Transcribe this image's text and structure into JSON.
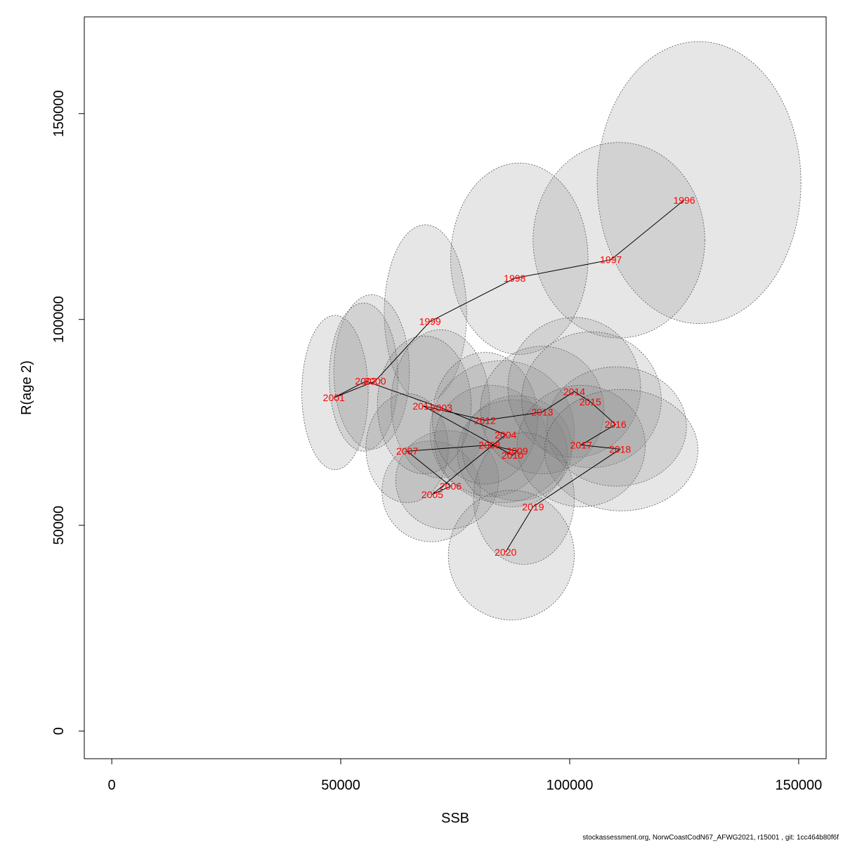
{
  "footer": "stockassessment.org, NorwCoastCodN67_AFWG2021, r15001 , git: 1cc464b80f6f",
  "chart_data": {
    "type": "scatter",
    "xlabel": "SSB",
    "ylabel": "R(age 2)",
    "xlim": [
      -6000,
      156000
    ],
    "ylim": [
      -6700,
      173500
    ],
    "x_ticks": [
      0,
      50000,
      100000,
      150000
    ],
    "y_ticks": [
      0,
      50000,
      100000,
      150000
    ],
    "grid": false,
    "colors": {
      "label": "#ff0000",
      "ellipse_fill": "#808080",
      "ellipse_stroke": "#555555",
      "line": "#000000"
    },
    "points": [
      {
        "year": "1996",
        "ssb": 125000,
        "rec": 129000,
        "ell": {
          "x": [
            106000,
            150500
          ],
          "y": [
            99000,
            167500
          ]
        }
      },
      {
        "year": "1997",
        "ssb": 109000,
        "rec": 114500,
        "ell": {
          "x": [
            92000,
            129500
          ],
          "y": [
            95500,
            143000
          ]
        }
      },
      {
        "year": "1998",
        "ssb": 88000,
        "rec": 110000,
        "ell": {
          "x": [
            74000,
            104000
          ],
          "y": [
            91500,
            138000
          ]
        }
      },
      {
        "year": "1999",
        "ssb": 69500,
        "rec": 99500,
        "ell": {
          "x": [
            59500,
            77500
          ],
          "y": [
            80000,
            123000
          ]
        }
      },
      {
        "year": "2000",
        "ssb": 57500,
        "rec": 85000,
        "ell": {
          "x": [
            48500,
            65000
          ],
          "y": [
            68500,
            106000
          ]
        }
      },
      {
        "year": "2001",
        "ssb": 48500,
        "rec": 81000,
        "ell": {
          "x": [
            41500,
            56000
          ],
          "y": [
            63500,
            101000
          ]
        }
      },
      {
        "year": "2002",
        "ssb": 55500,
        "rec": 85000,
        "ell": {
          "x": [
            47500,
            62500
          ],
          "y": [
            68000,
            104000
          ]
        }
      },
      {
        "year": "2003",
        "ssb": 72000,
        "rec": 78500,
        "ell": {
          "x": [
            61000,
            82500
          ],
          "y": [
            61500,
            97500
          ]
        }
      },
      {
        "year": "2004",
        "ssb": 86000,
        "rec": 72000,
        "ell": {
          "x": [
            69500,
            101000
          ],
          "y": [
            55500,
            90000
          ]
        }
      },
      {
        "year": "2005",
        "ssb": 70000,
        "rec": 57500,
        "ell": {
          "x": [
            59000,
            80500
          ],
          "y": [
            46000,
            70500
          ]
        }
      },
      {
        "year": "2006",
        "ssb": 74000,
        "rec": 59500,
        "ell": {
          "x": [
            62000,
            84500
          ],
          "y": [
            49000,
            73000
          ]
        }
      },
      {
        "year": "2007",
        "ssb": 64500,
        "rec": 68000,
        "ell": {
          "x": [
            55500,
            73500
          ],
          "y": [
            55500,
            82000
          ]
        }
      },
      {
        "year": "2008",
        "ssb": 82500,
        "rec": 69500,
        "ell": {
          "x": [
            70500,
            95000
          ],
          "y": [
            57000,
            84000
          ]
        }
      },
      {
        "year": "2009",
        "ssb": 88500,
        "rec": 68000,
        "ell": {
          "x": [
            76500,
            100500
          ],
          "y": [
            56000,
            81500
          ]
        }
      },
      {
        "year": "2010",
        "ssb": 87500,
        "rec": 67000,
        "ell": {
          "x": [
            75500,
            99500
          ],
          "y": [
            54500,
            80500
          ]
        }
      },
      {
        "year": "2011",
        "ssb": 68000,
        "rec": 79000,
        "ell": {
          "x": [
            58000,
            78500
          ],
          "y": [
            62500,
            96000
          ]
        }
      },
      {
        "year": "2012",
        "ssb": 81500,
        "rec": 75500,
        "ell": {
          "x": [
            70000,
            93000
          ],
          "y": [
            60000,
            92000
          ]
        }
      },
      {
        "year": "2013",
        "ssb": 94000,
        "rec": 77500,
        "ell": {
          "x": [
            80500,
            107500
          ],
          "y": [
            62500,
            93500
          ]
        }
      },
      {
        "year": "2014",
        "ssb": 101000,
        "rec": 82500,
        "ell": {
          "x": [
            86500,
            115500
          ],
          "y": [
            66500,
            100500
          ]
        }
      },
      {
        "year": "2015",
        "ssb": 104500,
        "rec": 80000,
        "ell": {
          "x": [
            89500,
            120000
          ],
          "y": [
            64000,
            97000
          ]
        }
      },
      {
        "year": "2016",
        "ssb": 110000,
        "rec": 74500,
        "ell": {
          "x": [
            95000,
            125500
          ],
          "y": [
            59500,
            88500
          ]
        }
      },
      {
        "year": "2017",
        "ssb": 102500,
        "rec": 69500,
        "ell": {
          "x": [
            88500,
            116500
          ],
          "y": [
            54500,
            84000
          ]
        }
      },
      {
        "year": "2018",
        "ssb": 111000,
        "rec": 68500,
        "ell": {
          "x": [
            94500,
            128000
          ],
          "y": [
            53500,
            83000
          ]
        }
      },
      {
        "year": "2019",
        "ssb": 92000,
        "rec": 54500,
        "ell": {
          "x": [
            79000,
            101000
          ],
          "y": [
            40500,
            72500
          ]
        }
      },
      {
        "year": "2020",
        "ssb": 86000,
        "rec": 43500,
        "ell": {
          "x": [
            73500,
            101000
          ],
          "y": [
            27000,
            58500
          ]
        }
      }
    ]
  }
}
